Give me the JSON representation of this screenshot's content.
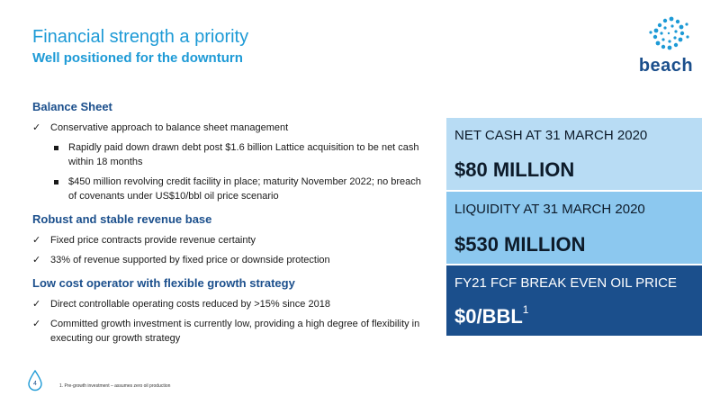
{
  "header": {
    "title": "Financial strength a priority",
    "subtitle": "Well positioned for the downturn"
  },
  "logo": {
    "text": "beach",
    "icon": "beach-sun-burst-logo"
  },
  "sections": [
    {
      "heading": "Balance Sheet",
      "items": [
        {
          "text": "Conservative approach to balance sheet management",
          "subitems": [
            "Rapidly paid down drawn debt post $1.6 billion Lattice acquisition to be net cash within 18 months",
            "$450 million revolving credit facility in place; maturity November 2022; no breach of covenants under US$10/bbl oil price scenario"
          ]
        }
      ]
    },
    {
      "heading": "Robust and stable revenue base",
      "items": [
        {
          "text": "Fixed price contracts provide revenue certainty"
        },
        {
          "text": "33% of revenue supported by fixed price or downside protection"
        }
      ]
    },
    {
      "heading": "Low cost operator with flexible growth strategy",
      "items": [
        {
          "text": "Direct controllable operating costs reduced by >15% since 2018"
        },
        {
          "text": "Committed growth investment is currently low, providing a high degree of flexibility in executing our growth strategy"
        }
      ]
    }
  ],
  "check_mark": "✓",
  "metrics": [
    {
      "label": "NET CASH AT 31 MARCH 2020",
      "value": "$80 MILLION",
      "sup": "",
      "color": "#b8dcf4"
    },
    {
      "label": "LIQUIDITY AT 31 MARCH 2020",
      "value": "$530 MILLION",
      "sup": "",
      "color": "#8cc8ef"
    },
    {
      "label": "FY21 FCF BREAK EVEN OIL PRICE",
      "value": "$0/BBL",
      "sup": "1",
      "color": "#1b4f8c"
    }
  ],
  "footer": {
    "page_number": "4",
    "footnote": "1. Pre-growth investment – assumes zero oil production"
  }
}
